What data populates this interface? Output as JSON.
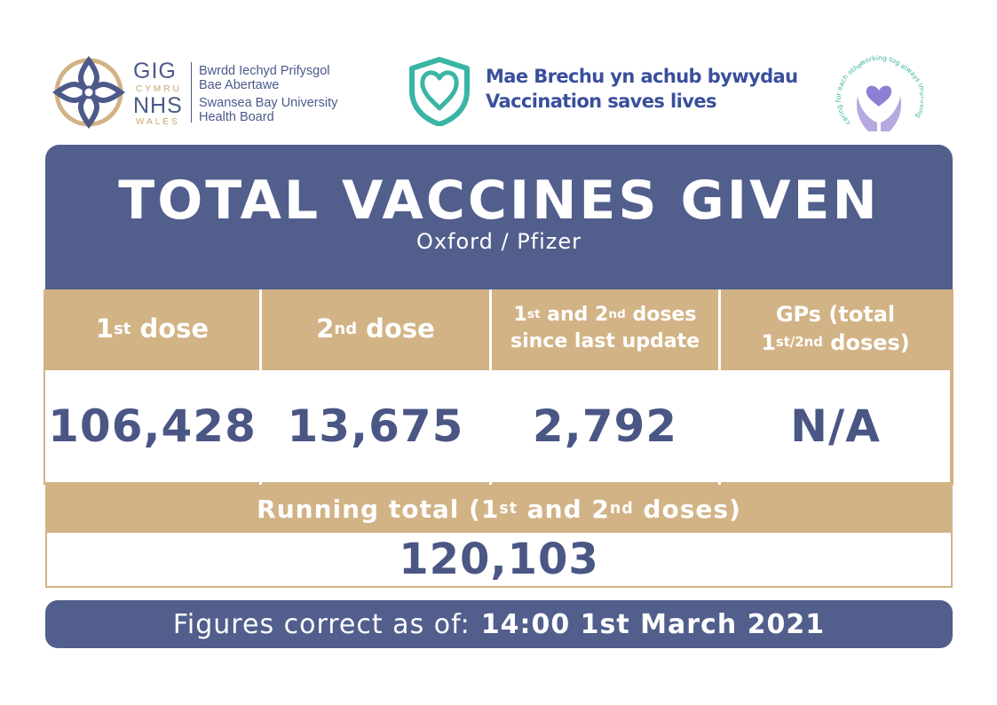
{
  "header": {
    "nhs": {
      "gig": "GIG",
      "cymru": "CYMRU",
      "nhs": "NHS",
      "wales": "WALES",
      "board_lines": [
        "Bwrdd Iechyd Prifysgol",
        "Bae Abertawe",
        "Swansea Bay University",
        "Health Board"
      ]
    },
    "campaign": {
      "welsh": "Mae Brechu yn achub bywydau",
      "english": "Vaccination saves lives"
    },
    "care_logo": {
      "left_text": "caring for each other",
      "top_text": "working together",
      "right_text": "always improving"
    }
  },
  "main": {
    "title": "TOTAL VACCINES GIVEN",
    "subtitle": "Oxford / Pfizer"
  },
  "table": {
    "columns": [
      {
        "id": "first",
        "label_parts": [
          "1",
          "st",
          " dose"
        ],
        "value": "106,428"
      },
      {
        "id": "second",
        "label_parts": [
          "2",
          "nd",
          " dose"
        ],
        "value": "13,675"
      },
      {
        "id": "since",
        "label_parts": [
          "1",
          "st",
          " and 2",
          "nd",
          " doses",
          "since last update"
        ],
        "value": "2,792"
      },
      {
        "id": "gps",
        "label_parts": [
          "GPs (total",
          "1",
          "st/2nd",
          " doses)"
        ],
        "value": "N/A"
      }
    ]
  },
  "running": {
    "label_parts": [
      "Running total (1",
      "st",
      " and 2",
      "nd",
      " doses)"
    ],
    "value": "120,103"
  },
  "footer": {
    "prefix": "Figures correct as of:",
    "date": "14:00 1st March 2021"
  },
  "colors": {
    "navy": "#525e8c",
    "gold": "#d2b385",
    "value_text": "#4a5684",
    "teal": "#3ab5a4",
    "lavender": "#9b8fd0"
  }
}
